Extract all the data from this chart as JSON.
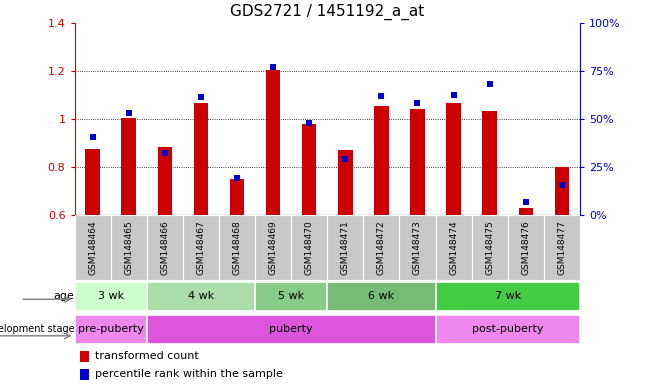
{
  "title": "GDS2721 / 1451192_a_at",
  "samples": [
    "GSM148464",
    "GSM148465",
    "GSM148466",
    "GSM148467",
    "GSM148468",
    "GSM148469",
    "GSM148470",
    "GSM148471",
    "GSM148472",
    "GSM148473",
    "GSM148474",
    "GSM148475",
    "GSM148476",
    "GSM148477"
  ],
  "red_values": [
    0.875,
    1.005,
    0.885,
    1.065,
    0.75,
    1.205,
    0.98,
    0.87,
    1.055,
    1.04,
    1.065,
    1.035,
    0.63,
    0.8
  ],
  "blue_values": [
    0.925,
    1.025,
    0.86,
    1.09,
    0.755,
    1.215,
    0.985,
    0.835,
    1.095,
    1.065,
    1.1,
    1.145,
    0.655,
    0.725
  ],
  "ylim": [
    0.6,
    1.4
  ],
  "yticks": [
    0.6,
    0.8,
    1.0,
    1.2,
    1.4
  ],
  "right_yticks": [
    0,
    25,
    50,
    75,
    100
  ],
  "red_color": "#cc0000",
  "blue_color": "#0000cc",
  "bar_width": 0.4,
  "age_groups": [
    {
      "label": "3 wk",
      "start": 0,
      "end": 1,
      "color": "#ccffcc"
    },
    {
      "label": "4 wk",
      "start": 2,
      "end": 4,
      "color": "#aaddaa"
    },
    {
      "label": "5 wk",
      "start": 5,
      "end": 6,
      "color": "#88cc88"
    },
    {
      "label": "6 wk",
      "start": 7,
      "end": 9,
      "color": "#66bb66"
    },
    {
      "label": "7 wk",
      "start": 10,
      "end": 13,
      "color": "#44aa44"
    }
  ],
  "dev_groups": [
    {
      "label": "pre-puberty",
      "start": 0,
      "end": 1,
      "color": "#ee88ee"
    },
    {
      "label": "puberty",
      "start": 2,
      "end": 9,
      "color": "#dd66dd"
    },
    {
      "label": "post-puberty",
      "start": 10,
      "end": 13,
      "color": "#ee88ee"
    }
  ],
  "sample_bg_color": "#c8c8c8",
  "background_color": "#ffffff",
  "grid_color": "#000000",
  "spine_color": "#000000"
}
